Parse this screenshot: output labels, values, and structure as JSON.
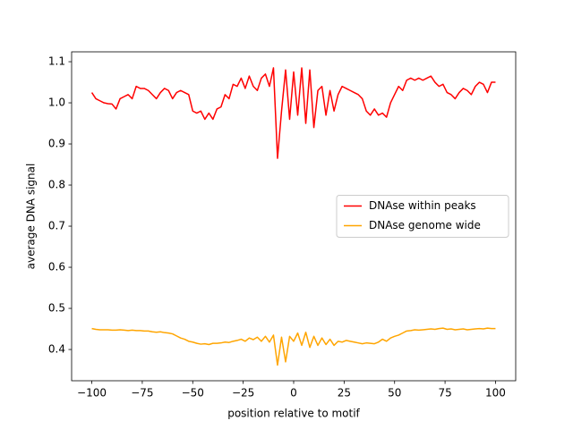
{
  "chart_data": {
    "type": "line",
    "xlabel": "position relative to motif",
    "ylabel": "average DNA signal",
    "x": [
      -100,
      -98,
      -96,
      -94,
      -92,
      -90,
      -88,
      -86,
      -84,
      -82,
      -80,
      -78,
      -76,
      -74,
      -72,
      -70,
      -68,
      -66,
      -64,
      -62,
      -60,
      -58,
      -56,
      -54,
      -52,
      -50,
      -48,
      -46,
      -44,
      -42,
      -40,
      -38,
      -36,
      -34,
      -32,
      -30,
      -28,
      -26,
      -24,
      -22,
      -20,
      -18,
      -16,
      -14,
      -12,
      -10,
      -8,
      -6,
      -4,
      -2,
      0,
      2,
      4,
      6,
      8,
      10,
      12,
      14,
      16,
      18,
      20,
      22,
      24,
      26,
      28,
      30,
      32,
      34,
      36,
      38,
      40,
      42,
      44,
      46,
      48,
      50,
      52,
      54,
      56,
      58,
      60,
      62,
      64,
      66,
      68,
      70,
      72,
      74,
      76,
      78,
      80,
      82,
      84,
      86,
      88,
      90,
      92,
      94,
      96,
      98,
      100
    ],
    "series": [
      {
        "name": "DNAse within peaks",
        "color": "#ff0000",
        "values": [
          1.025,
          1.01,
          1.005,
          1.0,
          0.998,
          0.997,
          0.985,
          1.01,
          1.015,
          1.02,
          1.01,
          1.04,
          1.035,
          1.035,
          1.03,
          1.02,
          1.01,
          1.025,
          1.035,
          1.03,
          1.01,
          1.025,
          1.03,
          1.025,
          1.02,
          0.98,
          0.975,
          0.98,
          0.96,
          0.975,
          0.96,
          0.985,
          0.99,
          1.02,
          1.01,
          1.045,
          1.04,
          1.06,
          1.035,
          1.065,
          1.04,
          1.03,
          1.06,
          1.07,
          1.04,
          1.085,
          0.865,
          0.98,
          1.08,
          0.96,
          1.075,
          0.97,
          1.085,
          0.95,
          1.08,
          0.94,
          1.03,
          1.04,
          0.97,
          1.03,
          0.98,
          1.02,
          1.04,
          1.035,
          1.03,
          1.025,
          1.02,
          1.01,
          0.98,
          0.97,
          0.985,
          0.97,
          0.975,
          0.965,
          1.0,
          1.02,
          1.04,
          1.03,
          1.055,
          1.06,
          1.055,
          1.06,
          1.055,
          1.06,
          1.065,
          1.05,
          1.04,
          1.045,
          1.025,
          1.02,
          1.01,
          1.025,
          1.035,
          1.03,
          1.02,
          1.04,
          1.05,
          1.045,
          1.025,
          1.05,
          1.05
        ]
      },
      {
        "name": "DNAse genome wide",
        "color": "#ffa500",
        "values": [
          0.451,
          0.449,
          0.448,
          0.448,
          0.448,
          0.447,
          0.447,
          0.448,
          0.447,
          0.446,
          0.447,
          0.446,
          0.446,
          0.445,
          0.445,
          0.443,
          0.442,
          0.443,
          0.441,
          0.44,
          0.438,
          0.433,
          0.428,
          0.425,
          0.42,
          0.418,
          0.415,
          0.413,
          0.414,
          0.412,
          0.415,
          0.415,
          0.416,
          0.418,
          0.417,
          0.42,
          0.422,
          0.425,
          0.42,
          0.428,
          0.424,
          0.43,
          0.42,
          0.432,
          0.418,
          0.435,
          0.362,
          0.43,
          0.37,
          0.432,
          0.42,
          0.44,
          0.41,
          0.442,
          0.405,
          0.432,
          0.41,
          0.428,
          0.412,
          0.425,
          0.41,
          0.42,
          0.418,
          0.422,
          0.42,
          0.418,
          0.416,
          0.414,
          0.416,
          0.415,
          0.414,
          0.418,
          0.425,
          0.42,
          0.428,
          0.432,
          0.435,
          0.44,
          0.445,
          0.446,
          0.448,
          0.447,
          0.448,
          0.449,
          0.45,
          0.449,
          0.451,
          0.452,
          0.449,
          0.45,
          0.448,
          0.449,
          0.45,
          0.448,
          0.449,
          0.45,
          0.451,
          0.45,
          0.452,
          0.451,
          0.451
        ]
      }
    ],
    "xlim": [
      -110,
      110
    ],
    "xticks": [
      {
        "value": -100,
        "label": "−100"
      },
      {
        "value": -75,
        "label": "−75"
      },
      {
        "value": -50,
        "label": "−50"
      },
      {
        "value": -25,
        "label": "−25"
      },
      0,
      25,
      50,
      75,
      100
    ],
    "ylim": [
      0.324,
      1.124
    ],
    "yticks": [
      0.4,
      0.5,
      0.6,
      0.7,
      0.8,
      0.9,
      {
        "value": 1,
        "label": "1.0"
      },
      1.1
    ],
    "grid": false,
    "legend": "center right"
  }
}
